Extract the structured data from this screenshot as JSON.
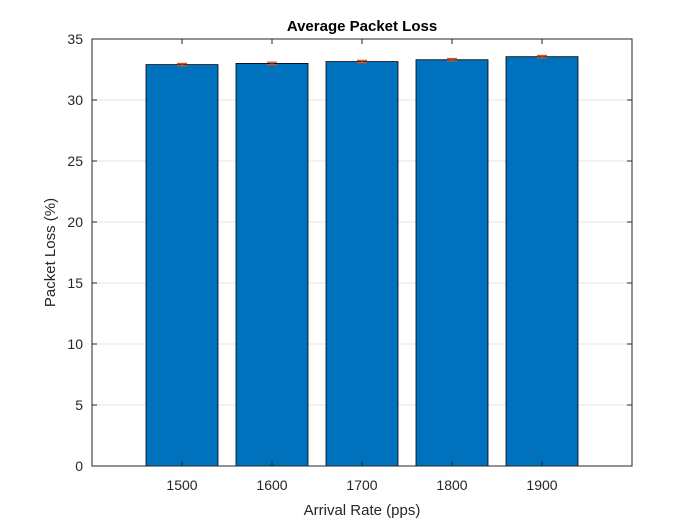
{
  "chart_data": {
    "type": "bar",
    "title": "Average Packet Loss",
    "xlabel": "Arrival Rate (pps)",
    "ylabel": "Packet Loss (%)",
    "categories": [
      "1500",
      "1600",
      "1700",
      "1800",
      "1900"
    ],
    "values": [
      32.9,
      33.0,
      33.15,
      33.3,
      33.55
    ],
    "error_bars": [
      0.1,
      0.1,
      0.1,
      0.1,
      0.1
    ],
    "ylim": [
      0,
      35
    ],
    "yticks": [
      0,
      5,
      10,
      15,
      20,
      25,
      30,
      35
    ],
    "xlim": [
      1400,
      2000
    ],
    "grid": true,
    "colors": {
      "bar": "#0072BD",
      "error": "#D95319",
      "axis": "#262626",
      "grid": "#E6E6E6"
    }
  }
}
